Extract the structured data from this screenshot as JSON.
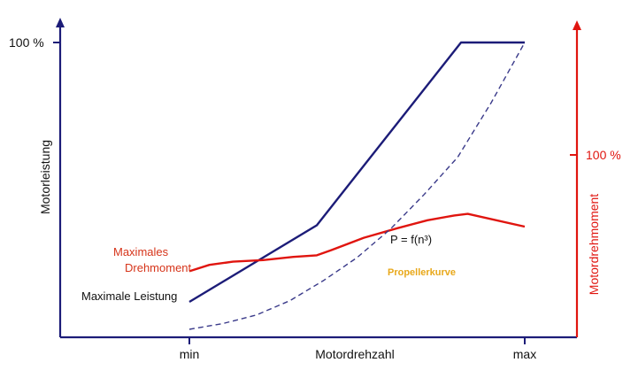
{
  "chart_data": {
    "type": "line",
    "title": "",
    "xlabel": "Motordrehzahl",
    "ylabel_left": "Motorleistung",
    "ylabel_right": "Motordrehmoment",
    "x_ticks": [
      "min",
      "max"
    ],
    "xlim": [
      0,
      1
    ],
    "y_tick_left": "100 %",
    "y_tick_right": "100 %",
    "ylim": [
      0,
      1
    ],
    "series": [
      {
        "name": "Maximale Leistung",
        "axis": "left",
        "color": "#1c1c78",
        "style": "solid",
        "x": [
          0.0,
          0.38,
          0.81,
          1.0
        ],
        "y": [
          0.12,
          0.38,
          1.0,
          1.0
        ]
      },
      {
        "name": "Maximales Drehmoment",
        "axis": "right",
        "color": "#e0150f",
        "style": "solid",
        "x": [
          0.0,
          0.06,
          0.13,
          0.22,
          0.31,
          0.38,
          0.42,
          0.52,
          0.62,
          0.71,
          0.79,
          0.83,
          1.0
        ],
        "y": [
          0.27,
          0.31,
          0.33,
          0.34,
          0.36,
          0.37,
          0.4,
          0.48,
          0.54,
          0.59,
          0.62,
          0.63,
          0.55
        ]
      },
      {
        "name": "Propellerkurve",
        "axis": "left",
        "color": "#3a3a8a",
        "style": "dashed",
        "x": [
          0.0,
          0.1,
          0.2,
          0.3,
          0.4,
          0.5,
          0.6,
          0.7,
          0.8,
          0.9,
          1.0
        ],
        "y": [
          0.0,
          0.02,
          0.05,
          0.1,
          0.17,
          0.25,
          0.35,
          0.47,
          0.6,
          0.79,
          1.0
        ]
      }
    ],
    "annotations": [
      {
        "id": "torque",
        "lines": [
          "Maximales",
          "Drehmoment"
        ],
        "color": "#d6341a"
      },
      {
        "id": "power",
        "lines": [
          "Maximale Leistung"
        ],
        "color": "#111111"
      },
      {
        "id": "formula",
        "lines": [
          "P = f(n³)"
        ],
        "color": "#111111"
      },
      {
        "id": "propeller",
        "lines": [
          "Propellerkurve"
        ],
        "color": "#e8a81a"
      }
    ],
    "axis_colors": {
      "left": "#1c1c78",
      "right": "#e0150f",
      "x": "#1c1c78"
    }
  }
}
